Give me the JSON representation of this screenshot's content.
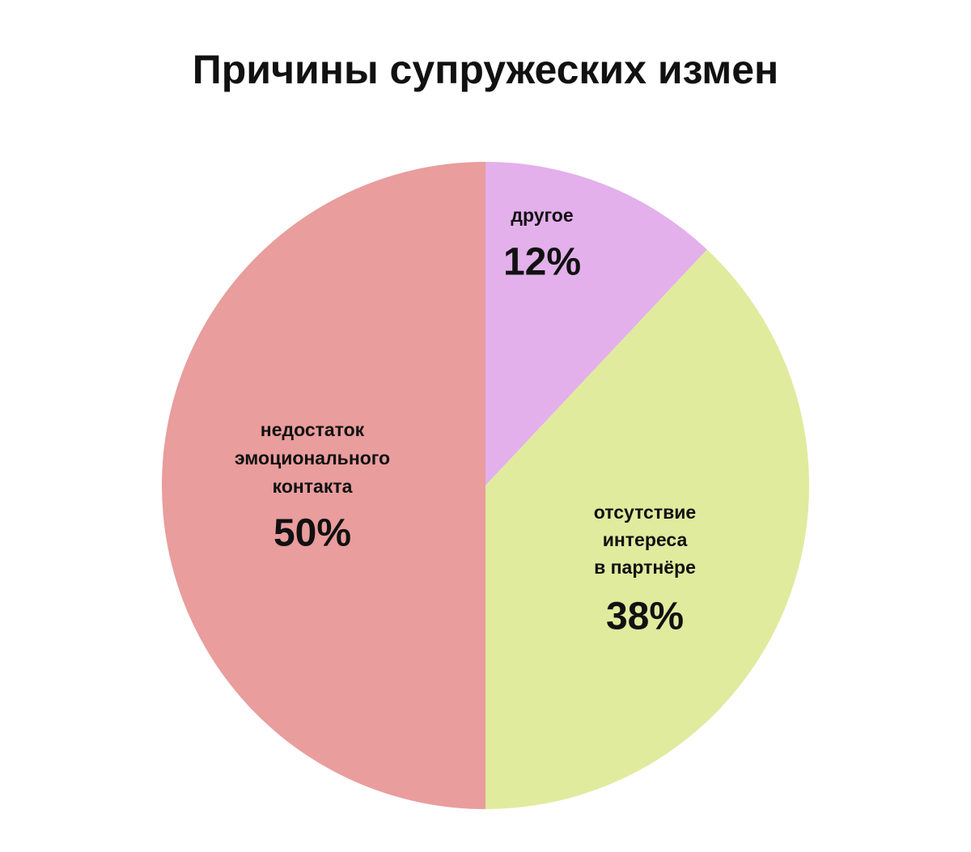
{
  "chart_data": {
    "type": "pie",
    "title": "Причины супружеских измен",
    "categories": [
      [
        "другое"
      ],
      [
        "отсутствие",
        "интереса",
        "в партнёре"
      ],
      [
        "недостаток",
        "эмоционального",
        "контакта"
      ]
    ],
    "values": [
      12,
      38,
      50
    ],
    "value_labels": [
      "12%",
      "38%",
      "50%"
    ],
    "colors": [
      "#e3b0eb",
      "#e0eb9e",
      "#e99d9d"
    ]
  }
}
